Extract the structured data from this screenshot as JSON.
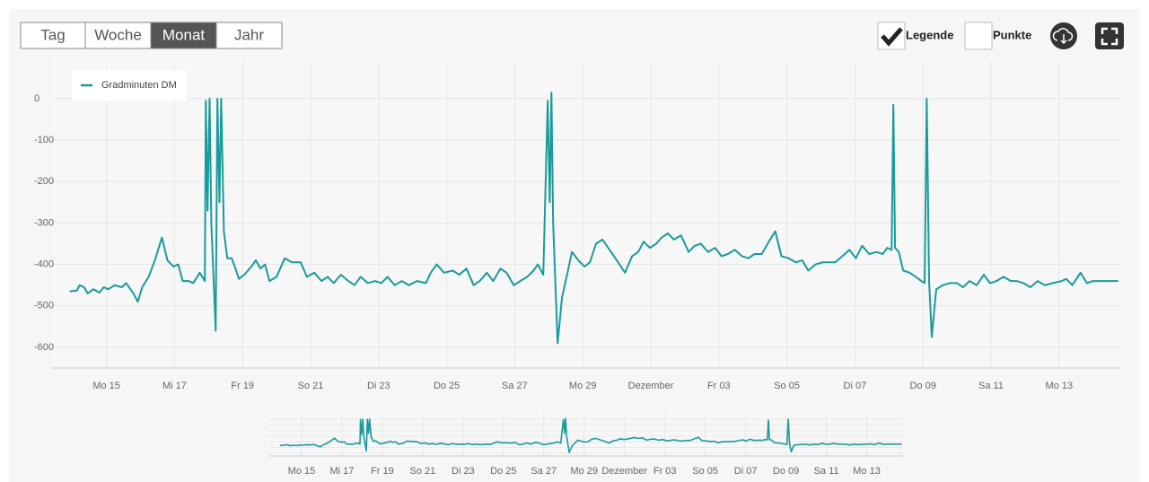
{
  "toolbar": {
    "range_buttons": [
      "Tag",
      "Woche",
      "Monat",
      "Jahr"
    ],
    "selected": 2,
    "checkboxes": [
      {
        "label": "Legende",
        "checked": true
      },
      {
        "label": "Punkte",
        "checked": false
      }
    ]
  },
  "chart_data": {
    "type": "line",
    "legend": "top-left",
    "grid": true,
    "x": [
      13.92,
      14.13,
      14.21,
      14.34,
      14.45,
      14.61,
      14.79,
      14.92,
      15.05,
      15.24,
      15.45,
      15.58,
      15.79,
      15.92,
      16.05,
      16.24,
      16.42,
      16.63,
      16.79,
      16.97,
      17.11,
      17.24,
      17.42,
      17.55,
      17.74,
      17.89,
      17.92,
      17.97,
      18.03,
      18.08,
      18.21,
      18.26,
      18.32,
      18.37,
      18.45,
      18.55,
      18.68,
      18.79,
      18.89,
      19.05,
      19.26,
      19.39,
      19.53,
      19.66,
      19.79,
      20.0,
      20.24,
      20.45,
      20.71,
      20.89,
      21.11,
      21.32,
      21.5,
      21.68,
      21.89,
      22.11,
      22.29,
      22.47,
      22.68,
      22.89,
      23.08,
      23.26,
      23.47,
      23.68,
      23.89,
      24.13,
      24.39,
      24.53,
      24.71,
      24.92,
      25.18,
      25.37,
      25.58,
      25.79,
      25.97,
      26.18,
      26.37,
      26.58,
      26.76,
      26.97,
      27.16,
      27.37,
      27.55,
      27.68,
      27.84,
      27.97,
      28.03,
      28.08,
      28.13,
      28.26,
      28.39,
      28.55,
      28.68,
      28.87,
      29.05,
      29.21,
      29.39,
      29.58,
      29.79,
      30.0,
      30.24,
      30.45,
      30.63,
      30.79,
      30.97,
      31.16,
      31.32,
      31.5,
      31.68,
      31.89,
      32.11,
      32.29,
      32.47,
      32.68,
      32.89,
      33.08,
      33.26,
      33.47,
      33.68,
      33.87,
      34.05,
      34.26,
      34.47,
      34.66,
      34.84,
      35.05,
      35.26,
      35.45,
      35.63,
      35.84,
      36.05,
      36.24,
      36.42,
      36.63,
      36.84,
      37.03,
      37.21,
      37.42,
      37.63,
      37.82,
      37.95,
      38.08,
      38.13,
      38.18,
      38.29,
      38.42,
      38.61,
      38.79,
      38.95,
      39.05,
      39.11,
      39.18,
      39.26,
      39.39,
      39.58,
      39.79,
      40.0,
      40.18,
      40.37,
      40.58,
      40.79,
      40.97,
      41.16,
      41.37,
      41.58,
      41.76,
      41.95,
      42.16,
      42.37,
      42.58,
      42.82,
      43.08,
      43.21,
      43.39,
      43.63,
      43.82,
      44.0,
      44.21,
      44.53,
      44.74
    ],
    "series": [
      {
        "name": "Gradminuten DM",
        "color": "#1b9a9b",
        "values": [
          -465,
          -463,
          -450,
          -455,
          -470,
          -460,
          -468,
          -455,
          -460,
          -450,
          -455,
          -445,
          -470,
          -490,
          -455,
          -430,
          -390,
          -335,
          -390,
          -405,
          -400,
          -440,
          -440,
          -445,
          -420,
          -440,
          -5,
          -270,
          0,
          -300,
          -560,
          0,
          -250,
          0,
          -320,
          -385,
          -385,
          -410,
          -435,
          -425,
          -405,
          -390,
          -410,
          -400,
          -440,
          -430,
          -385,
          -395,
          -395,
          -430,
          -420,
          -440,
          -430,
          -445,
          -425,
          -440,
          -450,
          -430,
          -445,
          -440,
          -445,
          -430,
          -450,
          -440,
          -450,
          -440,
          -445,
          -420,
          -400,
          -420,
          -415,
          -425,
          -410,
          -450,
          -440,
          -420,
          -440,
          -410,
          -420,
          -450,
          -440,
          -430,
          -415,
          -400,
          -425,
          -5,
          -250,
          15,
          -300,
          -590,
          -480,
          -420,
          -370,
          -390,
          -405,
          -395,
          -350,
          -340,
          -365,
          -390,
          -420,
          -380,
          -370,
          -345,
          -360,
          -350,
          -335,
          -325,
          -340,
          -330,
          -370,
          -355,
          -350,
          -370,
          -360,
          -380,
          -375,
          -365,
          -380,
          -385,
          -375,
          -375,
          -345,
          -320,
          -380,
          -385,
          -395,
          -390,
          -415,
          -400,
          -395,
          -395,
          -395,
          -380,
          -365,
          -385,
          -355,
          -375,
          -370,
          -375,
          -360,
          -365,
          -15,
          -360,
          -370,
          -415,
          -420,
          -430,
          -440,
          -445,
          0,
          -440,
          -575,
          -460,
          -450,
          -445,
          -445,
          -455,
          -440,
          -450,
          -425,
          -445,
          -440,
          -430,
          -440,
          -440,
          -445,
          -455,
          -440,
          -450,
          -445,
          -440,
          -435,
          -450,
          -420,
          -445,
          -440,
          -440,
          -440,
          -440
        ]
      }
    ],
    "xlim": [
      13.4,
      44.8
    ],
    "ylim": [
      -650,
      80
    ],
    "yticks": [
      0,
      -100,
      -200,
      -300,
      -400,
      -500,
      -600
    ],
    "xticks": [
      {
        "value": 15,
        "label": "Mo 15"
      },
      {
        "value": 17,
        "label": "Mi 17"
      },
      {
        "value": 19,
        "label": "Fr 19"
      },
      {
        "value": 21,
        "label": "So 21"
      },
      {
        "value": 23,
        "label": "Di 23"
      },
      {
        "value": 25,
        "label": "Do 25"
      },
      {
        "value": 27,
        "label": "Sa 27"
      },
      {
        "value": 29,
        "label": "Mo 29"
      },
      {
        "value": 31,
        "label": "Dezember"
      },
      {
        "value": 33,
        "label": "Fr 03"
      },
      {
        "value": 35,
        "label": "So 05"
      },
      {
        "value": 37,
        "label": "Di 07"
      },
      {
        "value": 39,
        "label": "Do 09"
      },
      {
        "value": 41,
        "label": "Sa 11"
      },
      {
        "value": 43,
        "label": "Mo 13"
      }
    ]
  }
}
